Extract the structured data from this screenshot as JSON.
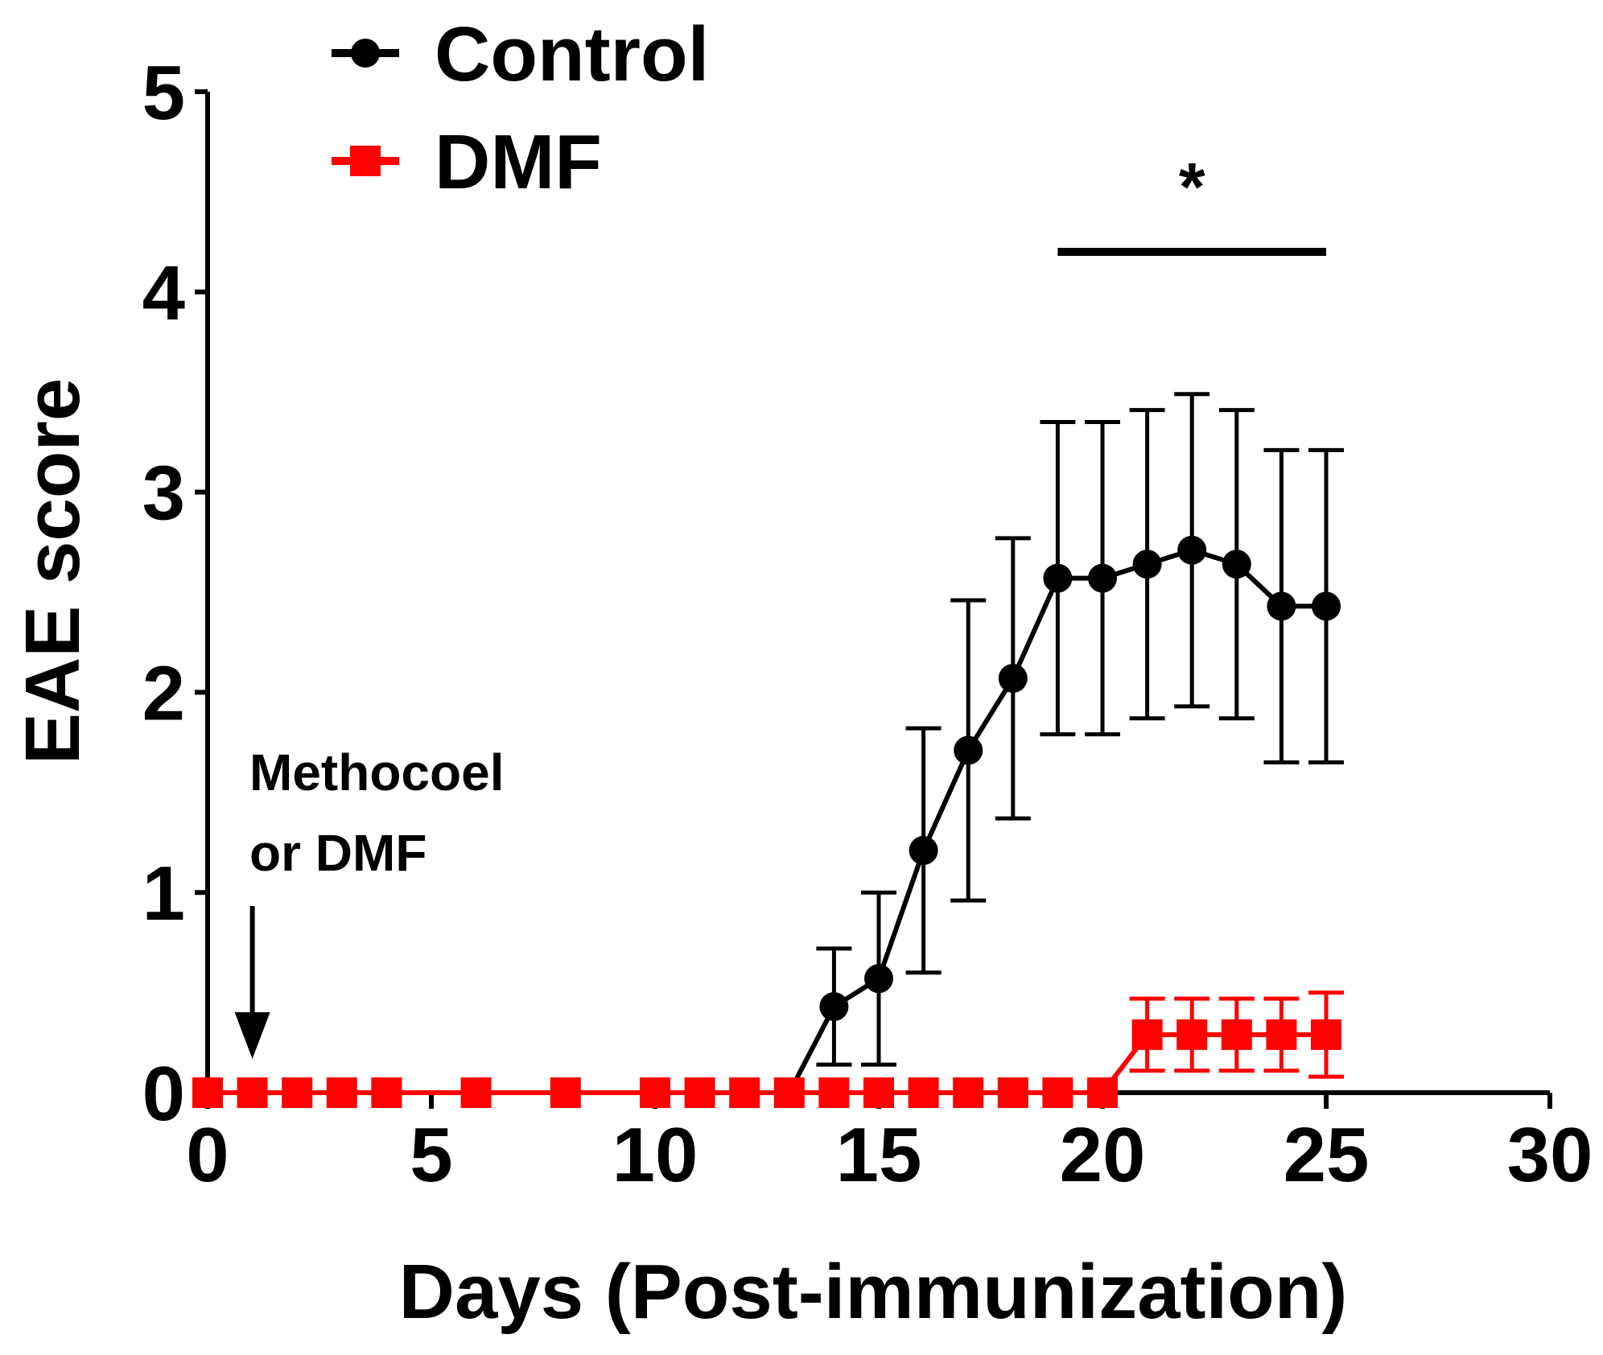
{
  "chart_data": {
    "type": "line",
    "title": "",
    "xlabel": "Days (Post-immunization)",
    "ylabel": "EAE score",
    "xlim": [
      0,
      30
    ],
    "ylim": [
      0,
      5
    ],
    "xticks": [
      0,
      5,
      10,
      15,
      20,
      25,
      30
    ],
    "yticks": [
      0,
      1,
      2,
      3,
      4,
      5
    ],
    "grid": false,
    "legend_position": "top-left",
    "series": [
      {
        "name": "Control",
        "color": "#000000",
        "marker": "circle",
        "x": [
          0,
          1,
          2,
          3,
          4,
          6,
          8,
          10,
          11,
          12,
          13,
          14,
          15,
          16,
          17,
          18,
          19,
          20,
          21,
          22,
          23,
          24,
          25
        ],
        "y": [
          0,
          0,
          0,
          0,
          0,
          0,
          0,
          0,
          0,
          0,
          0,
          0.43,
          0.57,
          1.21,
          1.71,
          2.07,
          2.57,
          2.57,
          2.64,
          2.71,
          2.64,
          2.43,
          2.43
        ],
        "error": [
          0,
          0,
          0,
          0,
          0,
          0,
          0,
          0,
          0,
          0,
          0,
          0.29,
          0.43,
          0.61,
          0.75,
          0.7,
          0.78,
          0.78,
          0.77,
          0.78,
          0.77,
          0.78,
          0.78
        ]
      },
      {
        "name": "DMF",
        "color": "#ff0000",
        "marker": "square",
        "x": [
          0,
          1,
          2,
          3,
          4,
          6,
          8,
          10,
          11,
          12,
          13,
          14,
          15,
          16,
          17,
          18,
          19,
          20,
          21,
          22,
          23,
          24,
          25
        ],
        "y": [
          0,
          0,
          0,
          0,
          0,
          0,
          0,
          0,
          0,
          0,
          0,
          0,
          0,
          0,
          0,
          0,
          0,
          0,
          0.29,
          0.29,
          0.29,
          0.29,
          0.29
        ],
        "error": [
          0,
          0,
          0,
          0,
          0,
          0,
          0,
          0,
          0,
          0,
          0,
          0,
          0,
          0,
          0,
          0,
          0,
          0,
          0.18,
          0.18,
          0.18,
          0.18,
          0.21
        ]
      }
    ],
    "annotations": {
      "arrow_day": 1,
      "arrow_text": [
        "Methocoel",
        "or DMF"
      ],
      "significance_bar_x": [
        19,
        25
      ],
      "significance_bar_y": 4.2,
      "significance_label": "*"
    }
  }
}
